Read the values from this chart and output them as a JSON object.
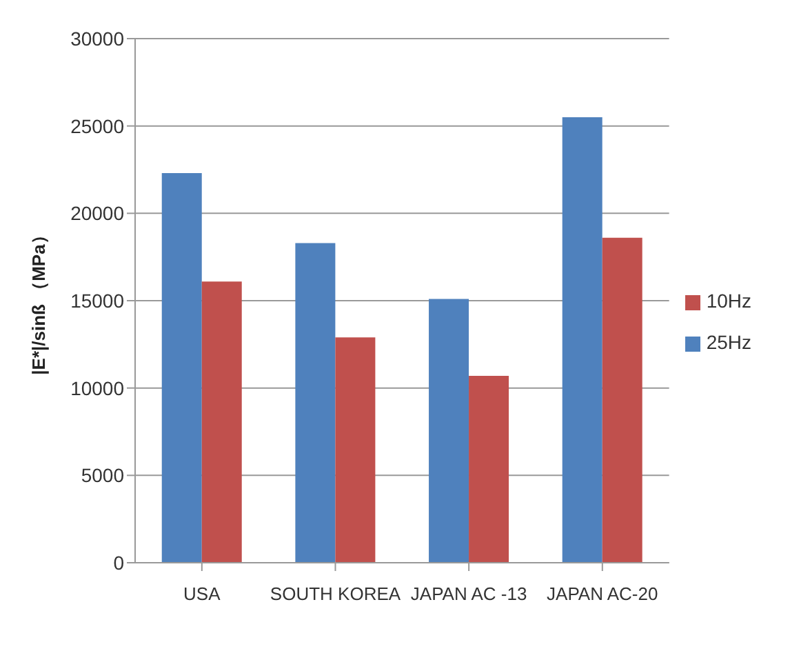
{
  "chart_data": {
    "type": "bar",
    "ylabel": "|E*|/sinß （MPa）",
    "categories": [
      "USA",
      "SOUTH KOREA",
      "JAPAN AC -13",
      "JAPAN AC-20"
    ],
    "series": [
      {
        "name": "25Hz",
        "color": "#4f81bd",
        "values": [
          22300,
          18300,
          15100,
          25500
        ]
      },
      {
        "name": "10Hz",
        "color": "#c0504d",
        "values": [
          16100,
          12900,
          10700,
          18600
        ]
      }
    ],
    "ylim": [
      0,
      30000
    ],
    "yticks": [
      0,
      5000,
      10000,
      15000,
      20000,
      25000,
      30000
    ],
    "grid": "y",
    "legend": "right"
  }
}
